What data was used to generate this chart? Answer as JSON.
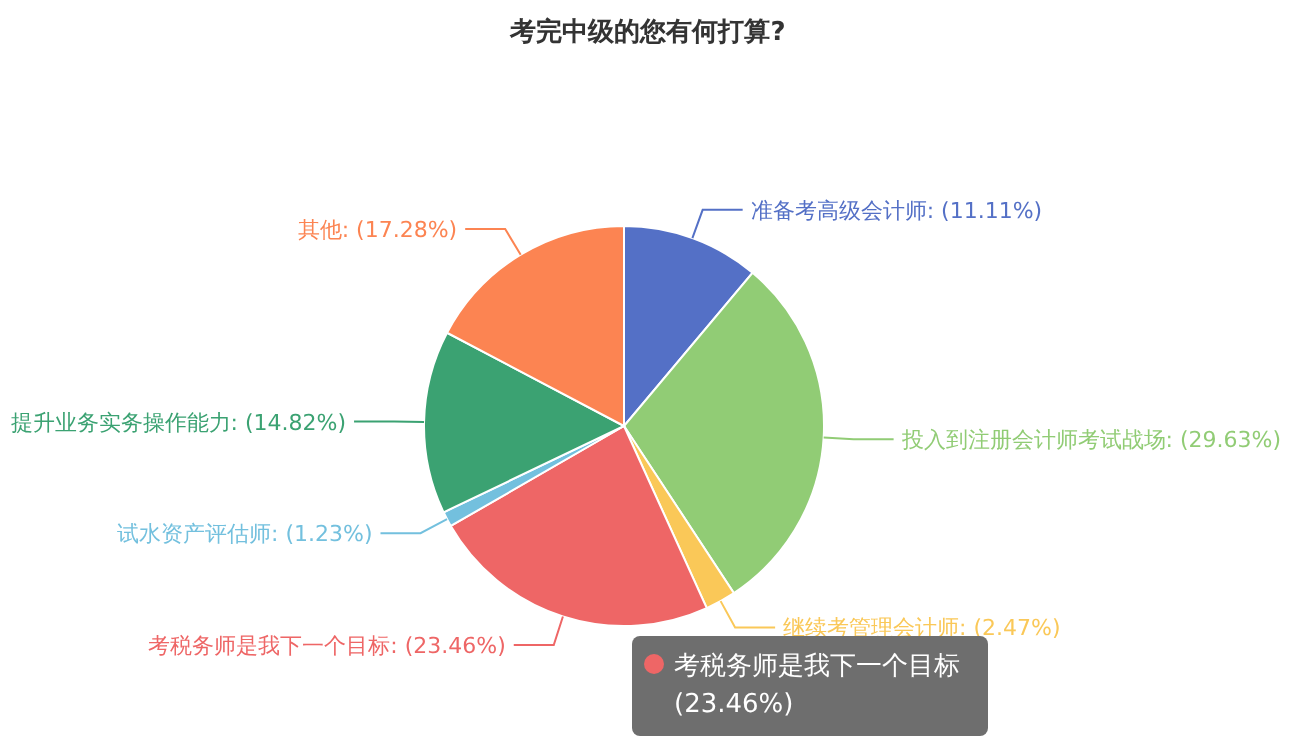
{
  "chart_data": {
    "type": "pie",
    "title": "考完中级的您有何打算?",
    "categories": [
      "准备考高级会计师",
      "投入到注册会计师考试战场",
      "继续考管理会计师",
      "考税务师是我下一个目标",
      "试水资产评估师",
      "提升业务实务操作能力",
      "其他"
    ],
    "values": [
      11.11,
      29.63,
      2.47,
      23.46,
      1.23,
      14.82,
      17.28
    ],
    "value_labels": [
      ": (11.11%)",
      ": (29.63%)",
      ": (2.47%)",
      ": (23.46%)",
      ": (1.23%)",
      ": (14.82%)",
      ": (17.28%)"
    ],
    "annotations": [
      "(23.46%)"
    ],
    "colors": [
      "#5470c6",
      "#91cc75",
      "#fac858",
      "#ee6666",
      "#73c0de",
      "#3ba272",
      "#fc8452"
    ],
    "legend": "bottom right"
  }
}
